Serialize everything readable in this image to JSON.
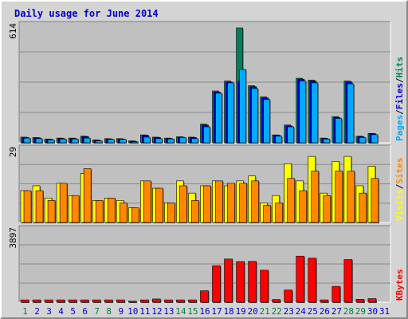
{
  "title": "Daily usage for June 2014",
  "colors": {
    "background": "#c0c0c0",
    "frame": "#d4d4d4",
    "hits": "#00805c",
    "files": "#0000cc",
    "pages": "#00aaff",
    "visits": "#ffff00",
    "sites": "#ff8800",
    "kbytes": "#ff0000",
    "weekday_label": "#0000cc",
    "weekend_label": "#008040",
    "gridline": "#8a8a8a"
  },
  "chart_data": [
    {
      "type": "bar",
      "title": "Daily usage for June 2014",
      "ylabel_max": "614",
      "ymax": 614,
      "legend": [
        "Pages",
        "Files",
        "Hits"
      ],
      "legend_separator": "/",
      "categories": [
        "1",
        "2",
        "3",
        "4",
        "5",
        "6",
        "7",
        "8",
        "9",
        "10",
        "11",
        "12",
        "13",
        "14",
        "15",
        "16",
        "17",
        "18",
        "19",
        "20",
        "21",
        "22",
        "23",
        "24",
        "25",
        "26",
        "27",
        "28",
        "29",
        "30",
        "31"
      ],
      "weekend_days": [
        "1",
        "7",
        "8",
        "14",
        "15",
        "21",
        "22",
        "28",
        "29"
      ],
      "series": [
        {
          "name": "Hits",
          "values": [
            30,
            28,
            20,
            25,
            25,
            35,
            15,
            22,
            22,
            10,
            42,
            30,
            25,
            32,
            30,
            100,
            277,
            330,
            614,
            305,
            245,
            42,
            95,
            345,
            335,
            25,
            140,
            330,
            35,
            50,
            0
          ]
        },
        {
          "name": "Files",
          "values": [
            28,
            26,
            18,
            23,
            23,
            33,
            13,
            20,
            20,
            8,
            40,
            28,
            23,
            30,
            28,
            95,
            270,
            325,
            330,
            300,
            240,
            40,
            90,
            340,
            330,
            23,
            135,
            325,
            33,
            48,
            0
          ]
        },
        {
          "name": "Pages",
          "values": [
            25,
            22,
            15,
            20,
            20,
            25,
            10,
            18,
            18,
            5,
            30,
            22,
            20,
            28,
            22,
            85,
            265,
            320,
            392,
            290,
            232,
            35,
            85,
            330,
            320,
            20,
            130,
            315,
            28,
            43,
            0
          ]
        }
      ]
    },
    {
      "type": "bar",
      "ylabel_max": "29",
      "ymax": 29,
      "legend": [
        "Visits",
        "Sites"
      ],
      "legend_separator": "/",
      "categories": [
        "1",
        "2",
        "3",
        "4",
        "5",
        "6",
        "7",
        "8",
        "9",
        "10",
        "11",
        "12",
        "13",
        "14",
        "15",
        "16",
        "17",
        "18",
        "19",
        "20",
        "21",
        "22",
        "23",
        "24",
        "25",
        "26",
        "27",
        "28",
        "29",
        "30",
        "31"
      ],
      "series": [
        {
          "name": "Visits",
          "values": [
            13,
            15,
            10,
            16,
            11,
            20,
            9,
            10,
            9,
            6,
            17,
            14,
            8,
            17,
            12,
            15,
            17,
            15,
            17,
            19,
            8,
            11,
            24,
            17,
            27,
            12,
            25,
            27,
            15,
            23,
            0
          ]
        },
        {
          "name": "Sites",
          "values": [
            13,
            13,
            9,
            16,
            11,
            22,
            9,
            10,
            8,
            6,
            17,
            14,
            8,
            15,
            9,
            15,
            17,
            16,
            16,
            17,
            7,
            8,
            18,
            13,
            21,
            11,
            21,
            21,
            12,
            18,
            0
          ]
        }
      ]
    },
    {
      "type": "bar",
      "ylabel_max": "3897",
      "ymax": 3897,
      "legend": [
        "KBytes"
      ],
      "categories": [
        "1",
        "2",
        "3",
        "4",
        "5",
        "6",
        "7",
        "8",
        "9",
        "10",
        "11",
        "12",
        "13",
        "14",
        "15",
        "16",
        "17",
        "18",
        "19",
        "20",
        "21",
        "22",
        "23",
        "24",
        "25",
        "26",
        "27",
        "28",
        "29",
        "30",
        "31"
      ],
      "series": [
        {
          "name": "KBytes",
          "values": [
            130,
            130,
            130,
            130,
            130,
            130,
            130,
            130,
            130,
            60,
            130,
            180,
            130,
            130,
            130,
            640,
            2030,
            2400,
            2260,
            2270,
            1780,
            150,
            680,
            2560,
            2450,
            130,
            880,
            2370,
            160,
            200,
            0
          ]
        }
      ]
    }
  ]
}
